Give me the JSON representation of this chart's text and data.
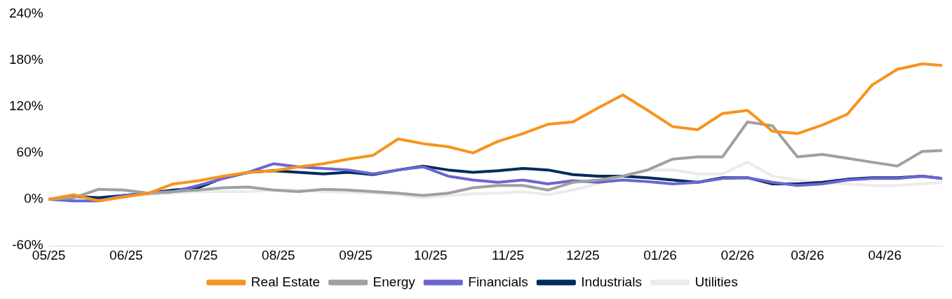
{
  "chart_data": {
    "type": "line",
    "legend": "bottom",
    "grid": false,
    "marker": "none",
    "line_style": "solid",
    "x": [
      "2025-05-01",
      "2025-05-11",
      "2025-05-21",
      "2025-05-31",
      "2025-06-10",
      "2025-06-20",
      "2025-06-30",
      "2025-07-10",
      "2025-07-20",
      "2025-07-30",
      "2025-08-09",
      "2025-08-19",
      "2025-08-29",
      "2025-09-08",
      "2025-09-18",
      "2025-09-28",
      "2025-10-08",
      "2025-10-18",
      "2025-10-28",
      "2025-11-07",
      "2025-11-17",
      "2025-11-27",
      "2025-12-07",
      "2025-12-17",
      "2025-12-27",
      "2026-01-06",
      "2026-01-16",
      "2026-01-26",
      "2026-02-05",
      "2026-02-15",
      "2026-02-25",
      "2026-03-07",
      "2026-03-17",
      "2026-03-27",
      "2026-04-06",
      "2026-04-16",
      "2026-04-24"
    ],
    "xticks": [
      {
        "value": "2025-05-01",
        "label": "05/25"
      },
      {
        "value": "2025-06-01",
        "label": "06/25"
      },
      {
        "value": "2025-07-01",
        "label": "07/25"
      },
      {
        "value": "2025-08-01",
        "label": "08/25"
      },
      {
        "value": "2025-09-01",
        "label": "09/25"
      },
      {
        "value": "2025-10-01",
        "label": "10/25"
      },
      {
        "value": "2025-11-01",
        "label": "11/25"
      },
      {
        "value": "2025-12-01",
        "label": "12/25"
      },
      {
        "value": "2026-01-01",
        "label": "01/26"
      },
      {
        "value": "2026-02-01",
        "label": "02/26"
      },
      {
        "value": "2026-03-01",
        "label": "03/26"
      },
      {
        "value": "2026-04-01",
        "label": "04/26"
      }
    ],
    "xlim": [
      "2025-05-01",
      "2026-04-24"
    ],
    "ylim": [
      -60,
      240
    ],
    "yticks": [
      {
        "value": -60,
        "label": "-60%"
      },
      {
        "value": 0,
        "label": "0%"
      },
      {
        "value": 60,
        "label": "60%"
      },
      {
        "value": 120,
        "label": "120%"
      },
      {
        "value": 180,
        "label": "180%"
      },
      {
        "value": 240,
        "label": "240%"
      }
    ],
    "series": [
      {
        "name": "Real Estate",
        "color": "#f7941d",
        "values": [
          0,
          6,
          -2,
          3,
          8,
          20,
          24,
          30,
          35,
          37,
          42,
          46,
          52,
          57,
          78,
          72,
          68,
          60,
          75,
          85,
          97,
          100,
          118,
          135,
          115,
          94,
          90,
          111,
          115,
          88,
          85,
          96,
          110,
          148,
          168,
          175,
          173
        ]
      },
      {
        "name": "Energy",
        "color": "#a0a0a0",
        "values": [
          0,
          2,
          13,
          12,
          8,
          10,
          12,
          15,
          16,
          12,
          10,
          13,
          12,
          10,
          8,
          5,
          8,
          15,
          18,
          18,
          12,
          22,
          25,
          30,
          38,
          52,
          55,
          55,
          100,
          95,
          55,
          58,
          53,
          48,
          43,
          62,
          63
        ]
      },
      {
        "name": "Financials",
        "color": "#6b66d1",
        "values": [
          0,
          -2,
          -2,
          5,
          8,
          10,
          18,
          27,
          35,
          46,
          42,
          40,
          38,
          33,
          38,
          42,
          30,
          25,
          22,
          25,
          20,
          24,
          22,
          25,
          23,
          20,
          22,
          27,
          28,
          22,
          18,
          20,
          25,
          27,
          27,
          30,
          27
        ]
      },
      {
        "name": "Industrials",
        "color": "#002b5c",
        "values": [
          0,
          4,
          2,
          5,
          8,
          12,
          15,
          28,
          35,
          37,
          35,
          33,
          35,
          32,
          38,
          43,
          38,
          35,
          37,
          40,
          38,
          32,
          30,
          30,
          28,
          25,
          22,
          28,
          28,
          20,
          20,
          22,
          26,
          28,
          28,
          30,
          27
        ]
      },
      {
        "name": "Utilities",
        "color": "#ebebeb",
        "values": [
          0,
          3,
          2,
          5,
          6,
          8,
          10,
          10,
          10,
          12,
          12,
          10,
          9,
          8,
          6,
          2,
          5,
          7,
          8,
          10,
          6,
          12,
          20,
          30,
          38,
          38,
          33,
          33,
          48,
          30,
          25,
          22,
          20,
          18,
          18,
          20,
          22
        ]
      }
    ]
  }
}
